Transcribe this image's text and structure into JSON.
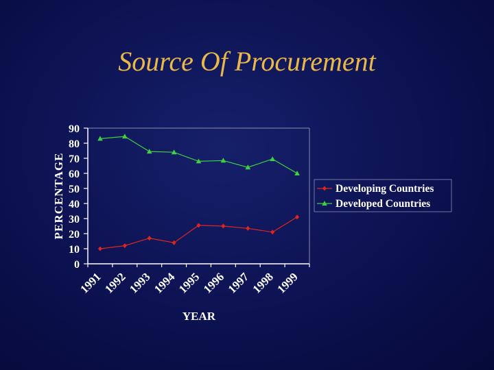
{
  "slide": {
    "title": "Source Of Procurement"
  },
  "chart_data": {
    "type": "line",
    "categories": [
      "1991",
      "1992",
      "1993",
      "1994",
      "1995",
      "1996",
      "1997",
      "1998",
      "1999"
    ],
    "series": [
      {
        "name": "Developing Countries",
        "color": "#e0261c",
        "marker": "diamond",
        "values": [
          10,
          12,
          17,
          14,
          25.5,
          25,
          23.5,
          21,
          31
        ]
      },
      {
        "name": "Developed Countries",
        "color": "#3fd13f",
        "marker": "triangle",
        "values": [
          83,
          84.5,
          74.5,
          74,
          68,
          68.5,
          64,
          69.5,
          60
        ]
      }
    ],
    "xlabel": "YEAR",
    "ylabel": "PERCENTAGE",
    "ylim": [
      0,
      90
    ],
    "yticks": [
      "0",
      "10",
      "20",
      "30",
      "40",
      "50",
      "60",
      "70",
      "80",
      "90"
    ],
    "grid": false,
    "legend": "right",
    "axis_color": "#ffffff",
    "background": "#0c1150"
  }
}
